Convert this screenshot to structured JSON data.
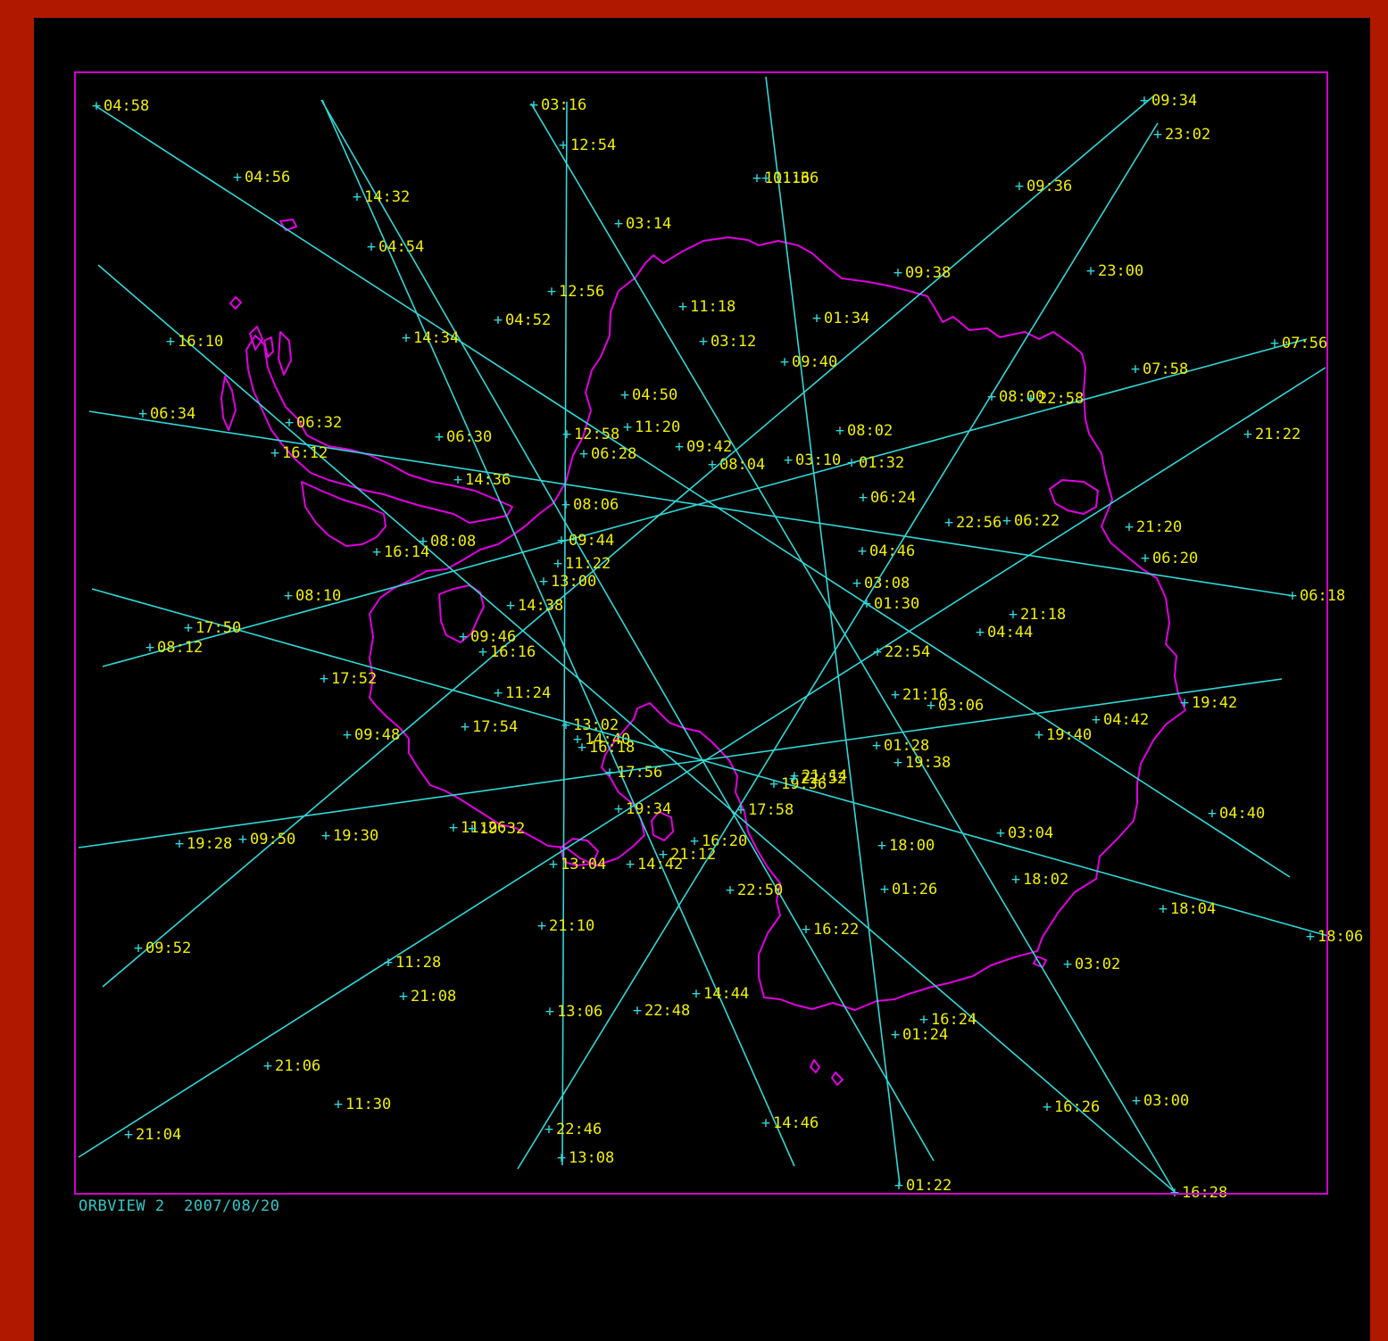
{
  "caption": {
    "satellite": "ORBVIEW 2",
    "date": "2007/08/20"
  },
  "colors": {
    "frame_bg": "#b01800",
    "screen_bg": "#000000",
    "track": "#30d8d8",
    "label": "#f0f000",
    "coast": "#e000e0",
    "border": "#d000d0",
    "caption": "#30c8c8"
  },
  "marker_glyph": "+",
  "tracks": [
    {
      "name": "pass-0300-0316",
      "labels": [
        "03:16",
        "03:14",
        "03:12",
        "03:10",
        "03:08",
        "03:06",
        "03:04",
        "03:02",
        "03:00"
      ]
    },
    {
      "name": "pass-0440-0458",
      "labels": [
        "04:58",
        "04:56",
        "04:54",
        "04:52",
        "04:50",
        "04:46",
        "04:44",
        "04:42",
        "04:40"
      ]
    },
    {
      "name": "pass-0618-0634",
      "labels": [
        "06:34",
        "06:32",
        "06:30",
        "06:28",
        "06:24",
        "06:22",
        "06:20",
        "06:18"
      ]
    },
    {
      "name": "pass-0756-0812",
      "labels": [
        "07:56",
        "07:58",
        "08:00",
        "08:02",
        "08:04",
        "08:06",
        "08:08",
        "08:10",
        "08:12"
      ]
    },
    {
      "name": "pass-0934-0952",
      "labels": [
        "09:34",
        "09:36",
        "09:38",
        "09:40",
        "09:42",
        "09:44",
        "09:46",
        "09:48",
        "09:50",
        "09:52"
      ]
    },
    {
      "name": "pass-1116-1130",
      "labels": [
        "11:16",
        "11:18",
        "11:20",
        "11:22",
        "11:24",
        "11:26",
        "11:28",
        "11:30"
      ]
    },
    {
      "name": "pass-1254-1308",
      "labels": [
        "12:54",
        "12:56",
        "12:58",
        "13:00",
        "13:02",
        "13:04",
        "13:06",
        "13:08"
      ]
    },
    {
      "name": "pass-1432-1446",
      "labels": [
        "14:32",
        "14:34",
        "14:36",
        "14:38",
        "14:40",
        "14:42",
        "14:44",
        "14:46"
      ]
    },
    {
      "name": "pass-1610-1628",
      "labels": [
        "16:10",
        "16:12",
        "16:14",
        "16:16",
        "16:18",
        "16:20",
        "16:22",
        "16:24",
        "16:26",
        "16:28"
      ]
    },
    {
      "name": "pass-1750-1806",
      "labels": [
        "17:50",
        "17:52",
        "17:54",
        "17:56",
        "17:58",
        "18:00",
        "18:02",
        "18:04",
        "18:06"
      ]
    },
    {
      "name": "pass-1928-1942",
      "labels": [
        "19:28",
        "19:30",
        "19:32",
        "19:34",
        "19:36",
        "19:38",
        "19:40",
        "19:42"
      ]
    },
    {
      "name": "pass-2104-2122",
      "labels": [
        "21:04",
        "21:06",
        "21:08",
        "21:10",
        "21:12",
        "21:14",
        "21:16",
        "21:18",
        "21:20",
        "21:22"
      ]
    },
    {
      "name": "pass-2246-2302",
      "labels": [
        "22:46",
        "22:48",
        "22:50",
        "22:52",
        "22:54",
        "22:56",
        "22:58",
        "23:00",
        "23:02"
      ]
    },
    {
      "name": "pass-0122-0136",
      "labels": [
        "01:22",
        "01:24",
        "01:26",
        "01:28",
        "01:30",
        "01:32",
        "01:34",
        "01:36"
      ]
    }
  ]
}
